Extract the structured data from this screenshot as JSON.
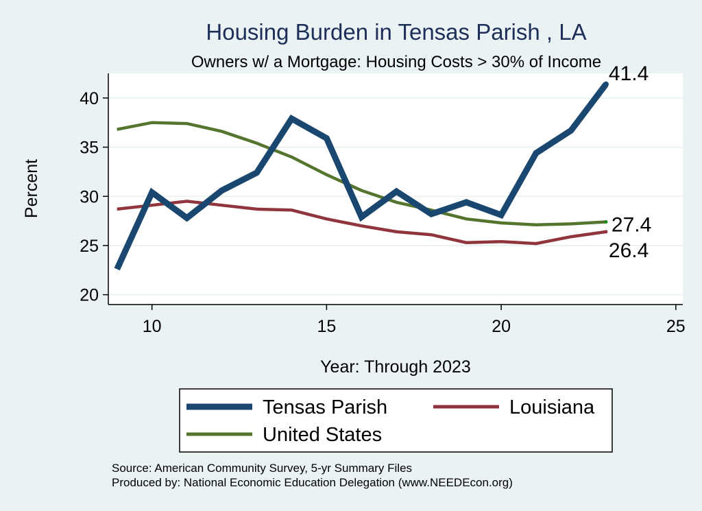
{
  "chart_data": {
    "type": "line",
    "title": "Housing Burden in Tensas Parish , LA",
    "subtitle": "Owners w/ a Mortgage: Housing Costs > 30% of Income",
    "xlabel": "Year: Through 2023",
    "ylabel": "Percent",
    "xlim": [
      8.75,
      25.2
    ],
    "ylim": [
      19,
      42.5
    ],
    "x_ticks": [
      10,
      15,
      20,
      25
    ],
    "y_ticks": [
      20,
      25,
      30,
      35,
      40
    ],
    "grid": true,
    "legend_position": "bottom",
    "x": [
      9,
      10,
      11,
      12,
      13,
      14,
      15,
      16,
      17,
      18,
      19,
      20,
      21,
      22,
      23
    ],
    "series": [
      {
        "name": "Tensas Parish",
        "color": "#1a476f",
        "values": [
          22.6,
          30.4,
          27.8,
          30.6,
          32.4,
          37.9,
          35.9,
          27.9,
          30.5,
          28.2,
          29.4,
          28.1,
          34.4,
          36.7,
          41.4
        ],
        "end_label": "41.4"
      },
      {
        "name": "Louisiana",
        "color": "#90353b",
        "values": [
          28.7,
          29.1,
          29.5,
          29.1,
          28.7,
          28.6,
          27.7,
          27.0,
          26.4,
          26.1,
          25.3,
          25.4,
          25.2,
          25.9,
          26.4
        ],
        "end_label": "26.4"
      },
      {
        "name": "United States",
        "color": "#55752f",
        "values": [
          36.8,
          37.5,
          37.4,
          36.6,
          35.4,
          34.0,
          32.2,
          30.6,
          29.4,
          28.6,
          27.7,
          27.3,
          27.1,
          27.2,
          27.4
        ],
        "end_label": "27.4"
      }
    ],
    "source_note": "Source: American Community Survey, 5-yr Summary Files",
    "producer_note": "Produced by: National Economic Education Delegation (www.NEEDEcon.org)"
  }
}
